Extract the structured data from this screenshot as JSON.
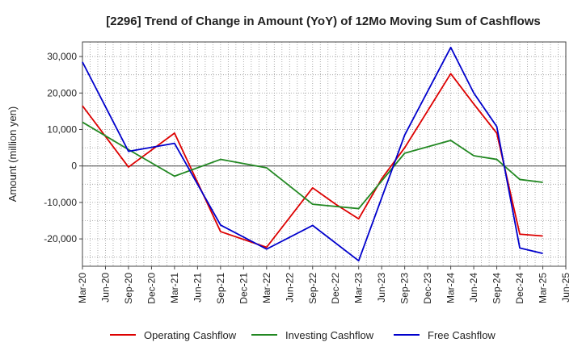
{
  "chart_data": {
    "type": "line",
    "title": "[2296]  Trend of Change in Amount (YoY) of 12Mo Moving Sum of Cashflows",
    "xlabel": "",
    "ylabel": "Amount (million yen)",
    "ylim": [
      -27500,
      34000
    ],
    "yticks": [
      -20000,
      -10000,
      0,
      10000,
      20000,
      30000
    ],
    "ytick_labels": [
      "-20,000",
      "-10,000",
      "0",
      "10,000",
      "20,000",
      "30,000"
    ],
    "categories": [
      "Mar-20",
      "Jun-20",
      "Sep-20",
      "Dec-20",
      "Mar-21",
      "Jun-21",
      "Sep-21",
      "Dec-21",
      "Mar-22",
      "Jun-22",
      "Sep-22",
      "Dec-22",
      "Mar-23",
      "Jun-23",
      "Sep-23",
      "Dec-23",
      "Mar-24",
      "Jun-24",
      "Sep-24",
      "Dec-24",
      "Mar-25",
      "Jun-25"
    ],
    "minor_per_quarter": 3,
    "grid": true,
    "legend_position": "bottom",
    "series": [
      {
        "name": "Operating Cashflow",
        "color": "#dd0000",
        "values": [
          {
            "i": 0,
            "v": 16500
          },
          {
            "i": 2,
            "v": -300
          },
          {
            "i": 4,
            "v": 9000
          },
          {
            "i": 5,
            "v": -4500
          },
          {
            "i": 6,
            "v": -18000
          },
          {
            "i": 8,
            "v": -22300
          },
          {
            "i": 10,
            "v": -6000
          },
          {
            "i": 11,
            "v": -10500
          },
          {
            "i": 12,
            "v": -14500
          },
          {
            "i": 13,
            "v": -3500
          },
          {
            "i": 14,
            "v": 5000
          },
          {
            "i": 16,
            "v": 25300
          },
          {
            "i": 17,
            "v": 17000
          },
          {
            "i": 18,
            "v": 9000
          },
          {
            "i": 19,
            "v": -18700
          },
          {
            "i": 20,
            "v": -19200
          }
        ]
      },
      {
        "name": "Investing Cashflow",
        "color": "#228822",
        "values": [
          {
            "i": 0,
            "v": 12000
          },
          {
            "i": 2,
            "v": 4500
          },
          {
            "i": 4,
            "v": -2800
          },
          {
            "i": 6,
            "v": 1800
          },
          {
            "i": 8,
            "v": -500
          },
          {
            "i": 10,
            "v": -10500
          },
          {
            "i": 12,
            "v": -11700
          },
          {
            "i": 14,
            "v": 3500
          },
          {
            "i": 16,
            "v": 7000
          },
          {
            "i": 17,
            "v": 2800
          },
          {
            "i": 18,
            "v": 1800
          },
          {
            "i": 19,
            "v": -3700
          },
          {
            "i": 20,
            "v": -4500
          }
        ]
      },
      {
        "name": "Free Cashflow",
        "color": "#0000cc",
        "values": [
          {
            "i": 0,
            "v": 28500
          },
          {
            "i": 2,
            "v": 4000
          },
          {
            "i": 4,
            "v": 6200
          },
          {
            "i": 6,
            "v": -16200
          },
          {
            "i": 8,
            "v": -22800
          },
          {
            "i": 10,
            "v": -16300
          },
          {
            "i": 12,
            "v": -26000
          },
          {
            "i": 14,
            "v": 8500
          },
          {
            "i": 16,
            "v": 32500
          },
          {
            "i": 17,
            "v": 20000
          },
          {
            "i": 18,
            "v": 10800
          },
          {
            "i": 19,
            "v": -22500
          },
          {
            "i": 20,
            "v": -24000
          }
        ]
      }
    ]
  }
}
